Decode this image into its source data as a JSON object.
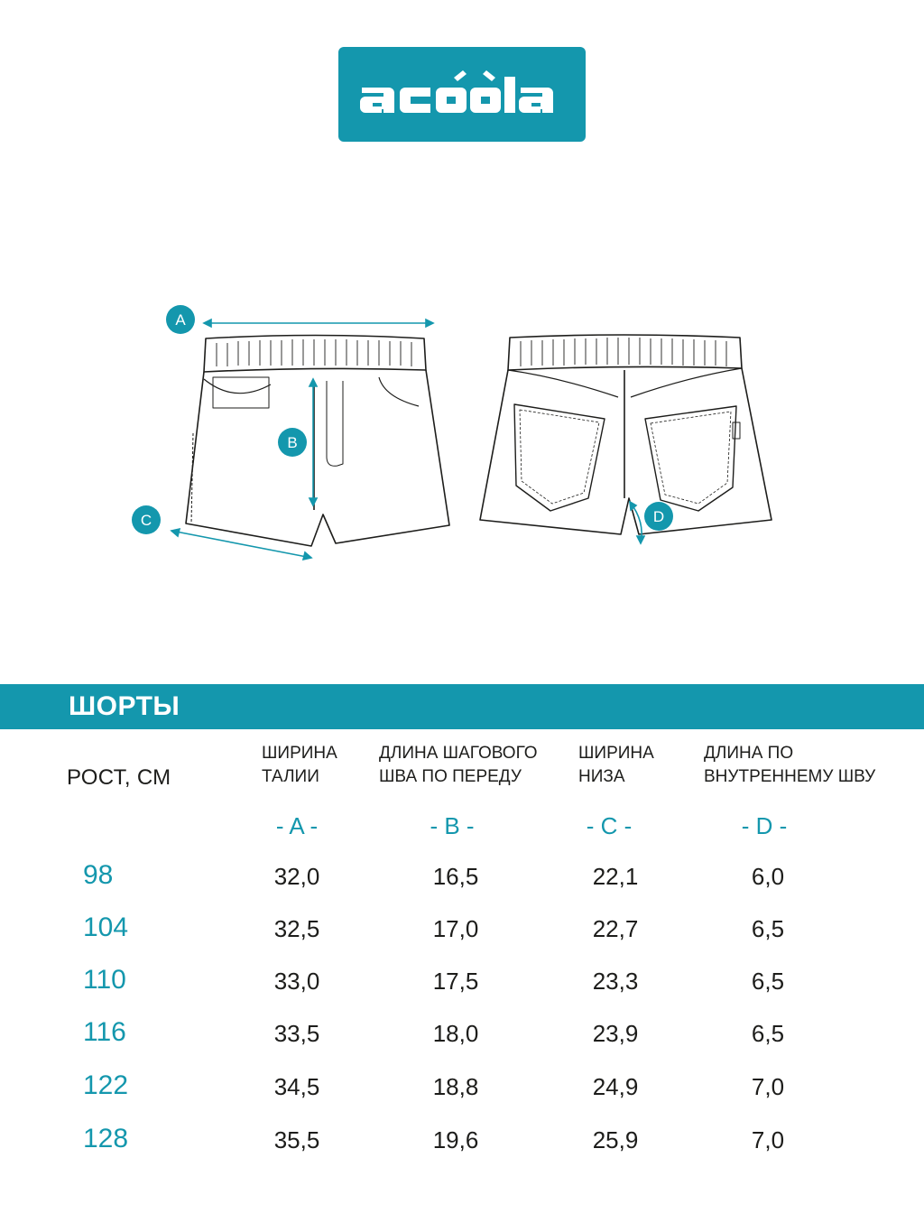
{
  "brand": {
    "logo_text": "acoola",
    "color": "#1497ad"
  },
  "diagram": {
    "markers": [
      "A",
      "B",
      "C",
      "D"
    ]
  },
  "section": {
    "title": "ШОРТЫ"
  },
  "table": {
    "growth_header": "РОСТ, СМ",
    "columns": [
      {
        "line1": "ШИРИНА",
        "line2": "ТАЛИИ",
        "letter": "- A -"
      },
      {
        "line1": "ДЛИНА ШАГОВОГО",
        "line2": "ШВА ПО ПЕРЕДУ",
        "letter": "- B -"
      },
      {
        "line1": "ШИРИНА",
        "line2": "НИЗА",
        "letter": "- C -"
      },
      {
        "line1": "ДЛИНА ПО",
        "line2": "ВНУТРЕННЕМУ ШВУ",
        "letter": "- D -"
      }
    ],
    "rows": [
      {
        "size": "98",
        "a": "32,0",
        "b": "16,5",
        "c": "22,1",
        "d": "6,0"
      },
      {
        "size": "104",
        "a": "32,5",
        "b": "17,0",
        "c": "22,7",
        "d": "6,5"
      },
      {
        "size": "110",
        "a": "33,0",
        "b": "17,5",
        "c": "23,3",
        "d": "6,5"
      },
      {
        "size": "116",
        "a": "33,5",
        "b": "18,0",
        "c": "23,9",
        "d": "6,5"
      },
      {
        "size": "122",
        "a": "34,5",
        "b": "18,8",
        "c": "24,9",
        "d": "7,0"
      },
      {
        "size": "128",
        "a": "35,5",
        "b": "19,6",
        "c": "25,9",
        "d": "7,0"
      }
    ]
  }
}
